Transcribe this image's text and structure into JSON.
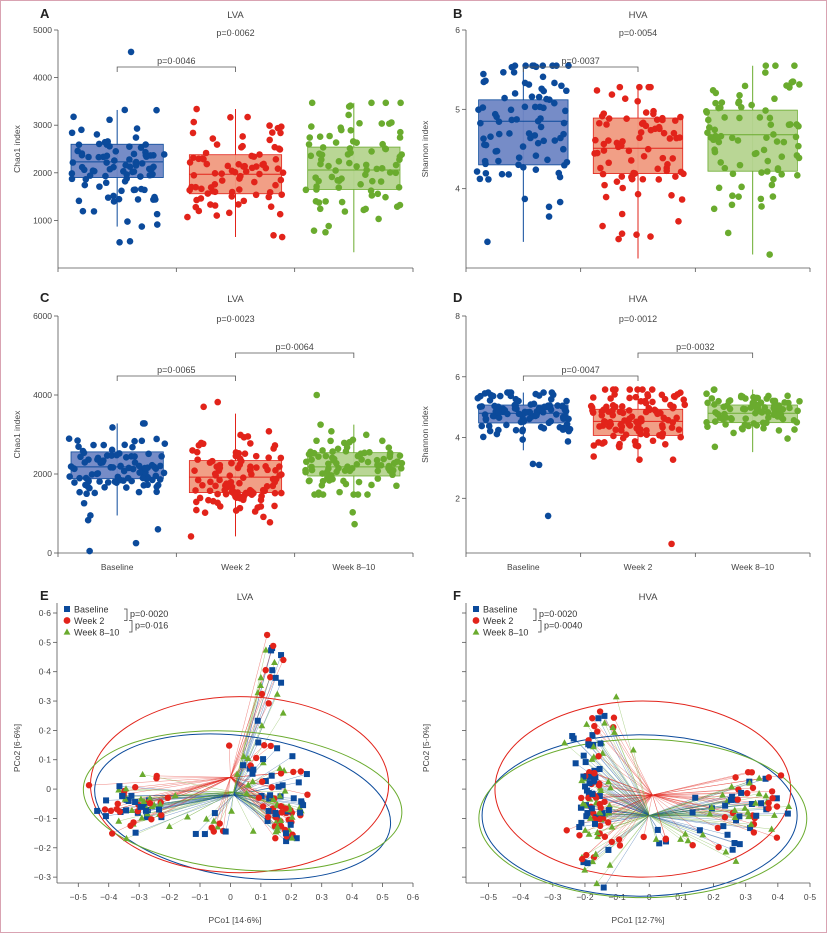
{
  "colors": {
    "baseline": "#0b4a9b",
    "week2": "#e2231a",
    "week8_10": "#6aab2e",
    "baseline_box": "#6f86c4",
    "week2_box": "#f09a80",
    "week8_10_box": "#b5d48f"
  },
  "groups": [
    "Baseline",
    "Week 2",
    "Week 8–10"
  ],
  "chart_data": [
    {
      "id": "A",
      "type": "box",
      "title": "LVA",
      "ylabel": "Chao1 index",
      "xlabel": "",
      "ylim": [
        0,
        5000
      ],
      "yticks": [
        1000,
        2000,
        3000,
        4000,
        5000
      ],
      "show_xticklabels": false,
      "categories": [
        "Baseline",
        "Week 2",
        "Week 8–10"
      ],
      "series": [
        {
          "name": "Baseline",
          "q1": 1900,
          "median": 2230,
          "q3": 2600,
          "whisker_low": 870,
          "whisker_high": 3320,
          "n": 90,
          "outliers": [
            4540,
            560,
            540
          ]
        },
        {
          "name": "Week 2",
          "q1": 1560,
          "median": 1970,
          "q3": 2380,
          "whisker_low": 650,
          "whisker_high": 3340,
          "n": 85,
          "outliers": []
        },
        {
          "name": "Week 8–10",
          "q1": 1650,
          "median": 2060,
          "q3": 2540,
          "whisker_low": 330,
          "whisker_high": 3470,
          "n": 85,
          "outliers": []
        }
      ],
      "comparisons": [
        {
          "from": "Baseline",
          "to": "Week 2",
          "label": "p=0·0046",
          "level": 1
        },
        {
          "label": "p=0·0062",
          "level": 2,
          "text_only": true,
          "at": "Week 2"
        }
      ]
    },
    {
      "id": "B",
      "type": "box",
      "title": "HVA",
      "ylabel": "Shannon index",
      "xlabel": "",
      "ylim": [
        3.0,
        6.0
      ],
      "yticks": [
        4,
        5,
        6
      ],
      "show_xticklabels": false,
      "categories": [
        "Baseline",
        "Week 2",
        "Week 8–10"
      ],
      "series": [
        {
          "name": "Baseline",
          "q1": 4.3,
          "median": 4.85,
          "q3": 5.12,
          "whisker_low": 3.33,
          "whisker_high": 5.55,
          "n": 90,
          "outliers": []
        },
        {
          "name": "Week 2",
          "q1": 4.19,
          "median": 4.51,
          "q3": 4.89,
          "whisker_low": 3.12,
          "whisker_high": 5.28,
          "n": 85,
          "outliers": []
        },
        {
          "name": "Week 8–10",
          "q1": 4.22,
          "median": 4.68,
          "q3": 4.99,
          "whisker_low": 3.17,
          "whisker_high": 5.55,
          "n": 85,
          "outliers": []
        }
      ],
      "comparisons": [
        {
          "from": "Baseline",
          "to": "Week 2",
          "label": "p=0·0037",
          "level": 1
        },
        {
          "label": "p=0·0054",
          "level": 2,
          "text_only": true,
          "at": "Week 2"
        }
      ]
    },
    {
      "id": "C",
      "type": "box",
      "title": "LVA",
      "ylabel": "Chao1 index",
      "xlabel": "",
      "ylim": [
        0,
        6000
      ],
      "yticks": [
        0,
        2000,
        4000,
        6000
      ],
      "show_xticklabels": true,
      "categories": [
        "Baseline",
        "Week 2",
        "Week 8–10"
      ],
      "series": [
        {
          "name": "Baseline",
          "q1": 1880,
          "median": 2180,
          "q3": 2560,
          "whisker_low": 950,
          "whisker_high": 3280,
          "n": 100,
          "outliers": [
            50,
            600,
            250,
            830
          ]
        },
        {
          "name": "Week 2",
          "q1": 1530,
          "median": 1920,
          "q3": 2340,
          "whisker_low": 420,
          "whisker_high": 3530,
          "n": 110,
          "outliers": [
            3820,
            3700
          ]
        },
        {
          "name": "Week 8–10",
          "q1": 1950,
          "median": 2180,
          "q3": 2540,
          "whisker_low": 1480,
          "whisker_high": 3250,
          "n": 90,
          "outliers": [
            4000,
            730,
            1030
          ]
        }
      ],
      "comparisons": [
        {
          "from": "Baseline",
          "to": "Week 2",
          "label": "p=0·0065",
          "level": 1
        },
        {
          "from": "Week 2",
          "to": "Week 8–10",
          "label": "p=0·0064",
          "level": 2
        },
        {
          "label": "p=0·0023",
          "level": 3,
          "text_only": true,
          "at": "Week 2"
        }
      ]
    },
    {
      "id": "D",
      "type": "box",
      "title": "HVA",
      "ylabel": "Shannon index",
      "xlabel": "",
      "ylim": [
        0.2,
        8
      ],
      "yticks": [
        2,
        4,
        6,
        8
      ],
      "show_xticklabels": true,
      "categories": [
        "Baseline",
        "Week 2",
        "Week 8–10"
      ],
      "series": [
        {
          "name": "Baseline",
          "q1": 4.48,
          "median": 4.8,
          "q3": 5.07,
          "whisker_low": 3.58,
          "whisker_high": 5.48,
          "n": 100,
          "outliers": [
            1.42,
            3.13,
            3.1
          ]
        },
        {
          "name": "Week 2",
          "q1": 4.07,
          "median": 4.53,
          "q3": 4.93,
          "whisker_low": 3.27,
          "whisker_high": 5.58,
          "n": 110,
          "outliers": [
            0.5
          ]
        },
        {
          "name": "Week 8–10",
          "q1": 4.49,
          "median": 4.8,
          "q3": 5.07,
          "whisker_low": 3.52,
          "whisker_high": 5.58,
          "n": 90,
          "outliers": []
        }
      ],
      "comparisons": [
        {
          "from": "Baseline",
          "to": "Week 2",
          "label": "p=0·0047",
          "level": 1
        },
        {
          "from": "Week 2",
          "to": "Week 8–10",
          "label": "p=0·0032",
          "level": 2
        },
        {
          "label": "p=0·0012",
          "level": 3,
          "text_only": true,
          "at": "Week 2"
        }
      ]
    },
    {
      "id": "E",
      "type": "scatter",
      "subtype": "pcoa",
      "title": "LVA",
      "xlabel": "PCo1 [14·6%]",
      "ylabel": "PCo2 [6·6%]",
      "xlim": [
        -0.57,
        0.6
      ],
      "ylim": [
        -0.32,
        0.6
      ],
      "xticks": [
        -0.5,
        -0.4,
        -0.3,
        -0.2,
        -0.1,
        0,
        0.1,
        0.2,
        0.3,
        0.4,
        0.5,
        0.6
      ],
      "yticks": [
        -0.3,
        -0.2,
        -0.1,
        0,
        0.1,
        0.2,
        0.3,
        0.4,
        0.5,
        0.6
      ],
      "show_ytick_labels": true,
      "legend": {
        "position": "top-left",
        "entries": [
          {
            "name": "Baseline",
            "marker": "square"
          },
          {
            "name": "Week 2",
            "marker": "circle"
          },
          {
            "name": "Week 8–10",
            "marker": "triangle"
          }
        ],
        "pvalues": [
          "p=0·0020",
          "p=0·016"
        ]
      },
      "centroids": {
        "Baseline": [
          0.01,
          -0.02
        ],
        "Week 2": [
          0.0,
          0.04
        ],
        "Week 8–10": [
          0.01,
          -0.01
        ]
      },
      "ellipses": {
        "Baseline": {
          "cx": 0.04,
          "cy": -0.06,
          "rx": 0.49,
          "ry": 0.24,
          "angle": -8
        },
        "Week 2": {
          "cx": 0.03,
          "cy": 0.015,
          "rx": 0.49,
          "ry": 0.3,
          "angle": 0
        },
        "Week 8–10": {
          "cx": 0.04,
          "cy": -0.04,
          "rx": 0.525,
          "ry": 0.235,
          "angle": -5
        }
      },
      "clusters": [
        {
          "cx": -0.3,
          "cy": -0.05,
          "sx": 0.07,
          "sy": 0.05,
          "n": 22
        },
        {
          "cx": 0.17,
          "cy": -0.08,
          "sx": 0.04,
          "sy": 0.06,
          "n": 26
        },
        {
          "cx": 0.13,
          "cy": 0.38,
          "sx": 0.03,
          "sy": 0.09,
          "n": 7
        },
        {
          "cx": 0.1,
          "cy": 0.1,
          "sx": 0.05,
          "sy": 0.05,
          "n": 8
        },
        {
          "cx": -0.05,
          "cy": -0.13,
          "sx": 0.04,
          "sy": 0.02,
          "n": 4
        }
      ]
    },
    {
      "id": "F",
      "type": "scatter",
      "subtype": "pcoa",
      "title": "HVA",
      "xlabel": "PCo1 [12·7%]",
      "ylabel": "PCo2 [5·0%]",
      "xlim": [
        -0.57,
        0.5
      ],
      "ylim": [
        -0.32,
        0.6
      ],
      "xticks": [
        -0.5,
        -0.4,
        -0.3,
        -0.2,
        -0.1,
        0,
        0.1,
        0.2,
        0.3,
        0.4,
        0.5
      ],
      "yticks": [
        -0.3,
        -0.2,
        -0.1,
        0,
        0.1,
        0.2,
        0.3,
        0.4,
        0.5,
        0.6
      ],
      "show_ytick_labels": false,
      "legend": {
        "position": "top-left",
        "entries": [
          {
            "name": "Baseline",
            "marker": "square"
          },
          {
            "name": "Week 2",
            "marker": "circle"
          },
          {
            "name": "Week 8–10",
            "marker": "triangle"
          }
        ],
        "pvalues": [
          "p=0·0020",
          "p=0·0040"
        ]
      },
      "centroids": {
        "Baseline": [
          0.0,
          -0.09
        ],
        "Week 2": [
          0.01,
          -0.02
        ],
        "Week 8–10": [
          0.0,
          -0.09
        ]
      },
      "ellipses": {
        "Baseline": {
          "cx": -0.03,
          "cy": -0.09,
          "rx": 0.49,
          "ry": 0.275,
          "angle": 0
        },
        "Week 2": {
          "cx": -0.02,
          "cy": 0.0,
          "rx": 0.46,
          "ry": 0.3,
          "angle": 0
        },
        "Week 8–10": {
          "cx": -0.02,
          "cy": -0.1,
          "rx": 0.51,
          "ry": 0.27,
          "angle": 0
        }
      },
      "clusters": [
        {
          "cx": -0.17,
          "cy": -0.07,
          "sx": 0.03,
          "sy": 0.14,
          "n": 34
        },
        {
          "cx": 0.3,
          "cy": -0.05,
          "sx": 0.07,
          "sy": 0.06,
          "n": 22
        },
        {
          "cx": 0.1,
          "cy": -0.17,
          "sx": 0.08,
          "sy": 0.02,
          "n": 6
        },
        {
          "cx": -0.12,
          "cy": 0.17,
          "sx": 0.04,
          "sy": 0.06,
          "n": 6
        }
      ]
    }
  ]
}
